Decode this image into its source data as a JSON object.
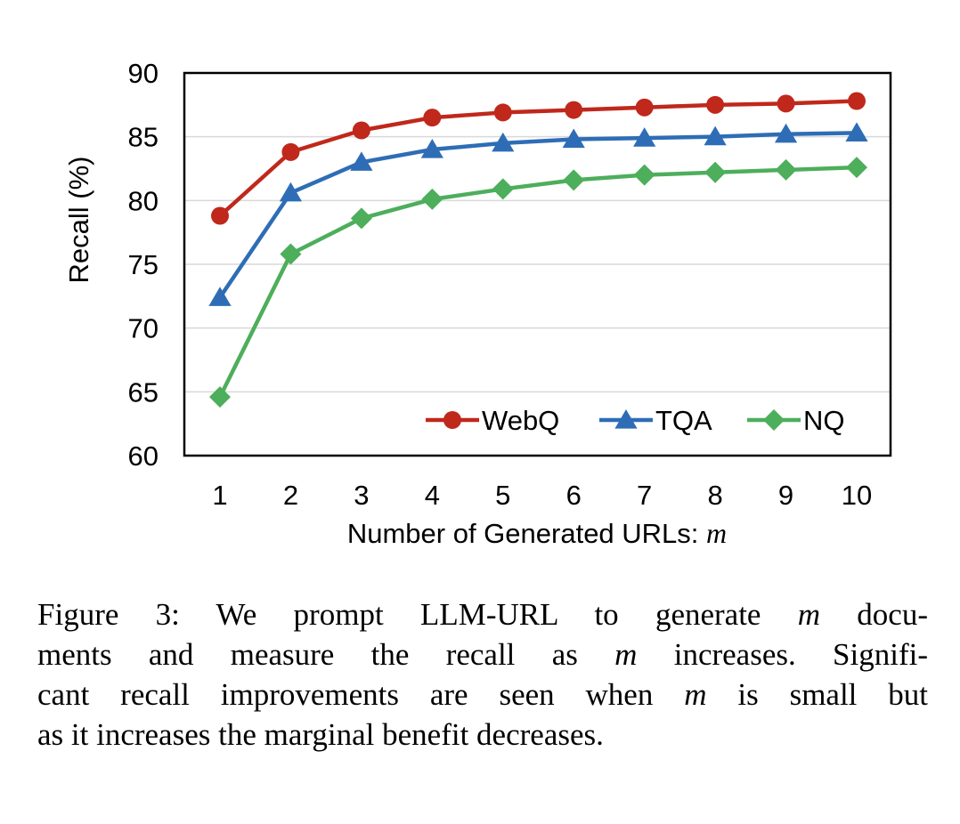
{
  "chart_data": {
    "type": "line",
    "categories": [
      "1",
      "2",
      "3",
      "4",
      "5",
      "6",
      "7",
      "8",
      "9",
      "10"
    ],
    "x": [
      1,
      2,
      3,
      4,
      5,
      6,
      7,
      8,
      9,
      10
    ],
    "series": [
      {
        "name": "WebQ",
        "marker": "circle",
        "color": "#C0281C",
        "values": [
          78.8,
          83.8,
          85.5,
          86.5,
          86.9,
          87.1,
          87.3,
          87.5,
          87.6,
          87.8
        ]
      },
      {
        "name": "TQA",
        "marker": "triangle",
        "color": "#2E6DB6",
        "values": [
          72.4,
          80.6,
          83.0,
          84.0,
          84.5,
          84.8,
          84.9,
          85.0,
          85.2,
          85.3
        ]
      },
      {
        "name": "NQ",
        "marker": "diamond",
        "color": "#4DAE5B",
        "values": [
          64.6,
          75.8,
          78.6,
          80.1,
          80.9,
          81.6,
          82.0,
          82.2,
          82.4,
          82.6
        ]
      }
    ],
    "title": "",
    "xlabel": "Number of Generated URLs:",
    "xlabel_var": "m",
    "ylabel": "Recall (%)",
    "ylim": [
      60,
      90
    ],
    "yticks": [
      60,
      65,
      70,
      75,
      80,
      85,
      90
    ],
    "grid": "horizontal",
    "legend_position": "bottom-right"
  },
  "caption": {
    "line1_a": "Figure 3: We prompt LLM-URL to generate ",
    "line1_var": "m",
    "line1_b": " docu-",
    "line2_a": "ments and measure the recall as ",
    "line2_var": "m",
    "line2_b": " increases.  Signifi-",
    "line3_a": "cant recall improvements are seen when ",
    "line3_var": "m",
    "line3_b": " is small but",
    "line4": "as it increases the marginal benefit decreases."
  }
}
